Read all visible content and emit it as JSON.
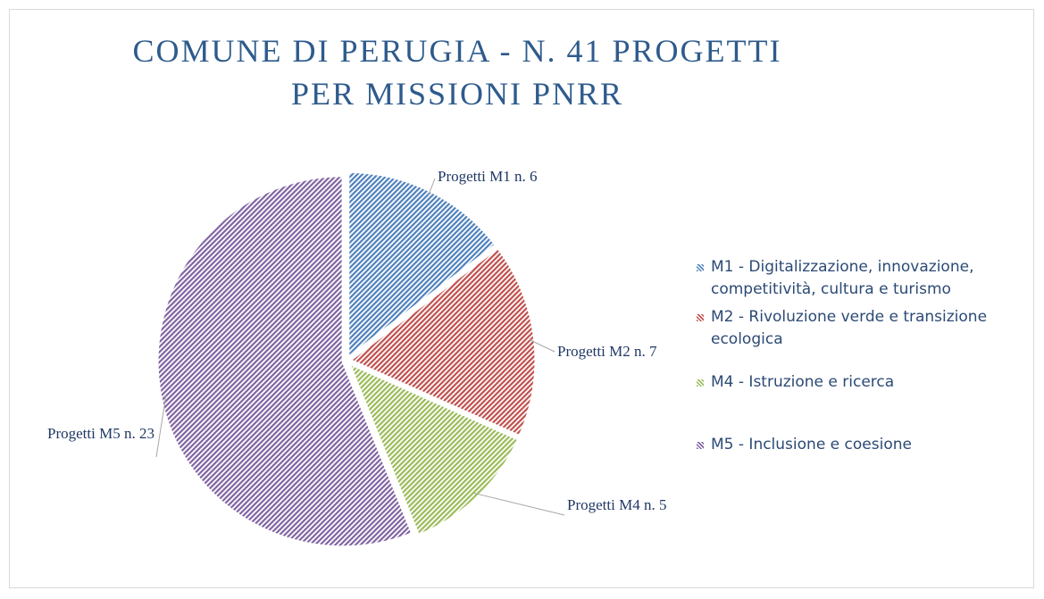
{
  "chart_data": {
    "type": "pie",
    "title": "COMUNE DI PERUGIA - N. 41 PROGETTI PER MISSIONI PNRR",
    "categories": [
      "M1 - Digitalizzazione, innovazione, competitività, cultura e turismo",
      "M2 - Rivoluzione verde e transizione ecologica",
      "M4 - Istruzione e ricerca",
      "M5 - Inclusione e coesione"
    ],
    "values": [
      6,
      7,
      5,
      23
    ],
    "value_labels": [
      "Progetti M1 n. 6",
      "Progetti M2 n. 7",
      "Progetti M4 n. 5",
      "Progetti M5 n. 23"
    ],
    "colors": [
      "#4f81bd",
      "#c0504d",
      "#9bbb59",
      "#8064a2"
    ],
    "legend": "right"
  }
}
